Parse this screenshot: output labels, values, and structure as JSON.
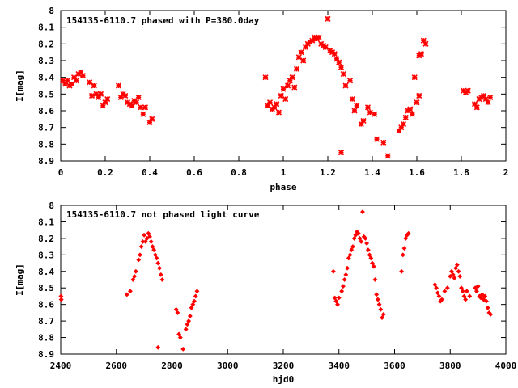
{
  "chart_data": [
    {
      "type": "scatter",
      "title": "154135-6110.7 phased with P=380.0day",
      "xlabel": "phase",
      "ylabel": "I[mag]",
      "xlim": [
        0,
        2
      ],
      "ylim": [
        8.9,
        8
      ],
      "y_inverted": true,
      "xticks": [
        0,
        0.2,
        0.4,
        0.6,
        0.8,
        1,
        1.2,
        1.4,
        1.6,
        1.8,
        2
      ],
      "xtick_labels": [
        "0",
        "0.2",
        "0.4",
        "0.6",
        "0.8",
        "1",
        "1.2",
        "1.4",
        "1.6",
        "1.8",
        "2"
      ],
      "yticks": [
        8,
        8.1,
        8.2,
        8.3,
        8.4,
        8.5,
        8.6,
        8.7,
        8.8,
        8.9
      ],
      "ytick_labels": [
        "8",
        "8.1",
        "8.2",
        "8.3",
        "8.4",
        "8.5",
        "8.6",
        "8.7",
        "8.8",
        "8.9"
      ],
      "marker": "cross",
      "color": "#ff0000",
      "grid": false,
      "points": [
        [
          0.01,
          8.42
        ],
        [
          0.02,
          8.44
        ],
        [
          0.03,
          8.42
        ],
        [
          0.04,
          8.45
        ],
        [
          0.05,
          8.44
        ],
        [
          0.06,
          8.4
        ],
        [
          0.07,
          8.42
        ],
        [
          0.08,
          8.38
        ],
        [
          0.09,
          8.37
        ],
        [
          0.1,
          8.39
        ],
        [
          0.13,
          8.43
        ],
        [
          0.14,
          8.51
        ],
        [
          0.15,
          8.45
        ],
        [
          0.16,
          8.5
        ],
        [
          0.17,
          8.52
        ],
        [
          0.18,
          8.5
        ],
        [
          0.19,
          8.57
        ],
        [
          0.2,
          8.55
        ],
        [
          0.21,
          8.53
        ],
        [
          0.26,
          8.45
        ],
        [
          0.27,
          8.52
        ],
        [
          0.28,
          8.5
        ],
        [
          0.29,
          8.51
        ],
        [
          0.3,
          8.55
        ],
        [
          0.31,
          8.56
        ],
        [
          0.32,
          8.57
        ],
        [
          0.33,
          8.54
        ],
        [
          0.34,
          8.55
        ],
        [
          0.35,
          8.52
        ],
        [
          0.36,
          8.58
        ],
        [
          0.37,
          8.62
        ],
        [
          0.38,
          8.58
        ],
        [
          0.4,
          8.67
        ],
        [
          0.41,
          8.65
        ],
        [
          0.92,
          8.4
        ],
        [
          0.93,
          8.57
        ],
        [
          0.94,
          8.55
        ],
        [
          0.95,
          8.59
        ],
        [
          0.96,
          8.58
        ],
        [
          0.97,
          8.56
        ],
        [
          0.98,
          8.61
        ],
        [
          0.99,
          8.51
        ],
        [
          1.0,
          8.47
        ],
        [
          1.01,
          8.53
        ],
        [
          1.02,
          8.45
        ],
        [
          1.03,
          8.42
        ],
        [
          1.04,
          8.4
        ],
        [
          1.05,
          8.46
        ],
        [
          1.06,
          8.35
        ],
        [
          1.07,
          8.28
        ],
        [
          1.08,
          8.25
        ],
        [
          1.09,
          8.3
        ],
        [
          1.1,
          8.22
        ],
        [
          1.11,
          8.2
        ],
        [
          1.12,
          8.19
        ],
        [
          1.13,
          8.18
        ],
        [
          1.14,
          8.16
        ],
        [
          1.15,
          8.17
        ],
        [
          1.16,
          8.16
        ],
        [
          1.17,
          8.2
        ],
        [
          1.18,
          8.21
        ],
        [
          1.19,
          8.22
        ],
        [
          1.2,
          8.05
        ],
        [
          1.21,
          8.24
        ],
        [
          1.22,
          8.25
        ],
        [
          1.23,
          8.26
        ],
        [
          1.24,
          8.29
        ],
        [
          1.25,
          8.31
        ],
        [
          1.26,
          8.34
        ],
        [
          1.27,
          8.38
        ],
        [
          1.28,
          8.45
        ],
        [
          1.3,
          8.42
        ],
        [
          1.31,
          8.53
        ],
        [
          1.32,
          8.6
        ],
        [
          1.33,
          8.57
        ],
        [
          1.35,
          8.68
        ],
        [
          1.36,
          8.66
        ],
        [
          1.38,
          8.58
        ],
        [
          1.39,
          8.61
        ],
        [
          1.41,
          8.62
        ],
        [
          1.42,
          8.77
        ],
        [
          1.45,
          8.79
        ],
        [
          1.26,
          8.85
        ],
        [
          1.47,
          8.87
        ],
        [
          1.52,
          8.72
        ],
        [
          1.53,
          8.7
        ],
        [
          1.54,
          8.68
        ],
        [
          1.55,
          8.64
        ],
        [
          1.56,
          8.6
        ],
        [
          1.57,
          8.59
        ],
        [
          1.58,
          8.62
        ],
        [
          1.59,
          8.4
        ],
        [
          1.6,
          8.55
        ],
        [
          1.61,
          8.51
        ],
        [
          1.61,
          8.27
        ],
        [
          1.62,
          8.26
        ],
        [
          1.63,
          8.18
        ],
        [
          1.64,
          8.2
        ],
        [
          1.81,
          8.48
        ],
        [
          1.82,
          8.49
        ],
        [
          1.83,
          8.48
        ],
        [
          1.86,
          8.56
        ],
        [
          1.87,
          8.58
        ],
        [
          1.88,
          8.53
        ],
        [
          1.89,
          8.52
        ],
        [
          1.9,
          8.51
        ],
        [
          1.91,
          8.53
        ],
        [
          1.92,
          8.55
        ],
        [
          1.93,
          8.52
        ]
      ]
    },
    {
      "type": "scatter",
      "title": "154135-6110.7 not phased light curve",
      "xlabel": "hjd0",
      "ylabel": "I[mag]",
      "xlim": [
        2400,
        4000
      ],
      "ylim": [
        8.9,
        8
      ],
      "y_inverted": true,
      "xticks": [
        2400,
        2600,
        2800,
        3000,
        3200,
        3400,
        3600,
        3800,
        4000
      ],
      "xtick_labels": [
        "2400",
        "2600",
        "2800",
        "3000",
        "3200",
        "3400",
        "3600",
        "3800",
        "4000"
      ],
      "yticks": [
        8,
        8.1,
        8.2,
        8.3,
        8.4,
        8.5,
        8.6,
        8.7,
        8.8,
        8.9
      ],
      "ytick_labels": [
        "8",
        "8.1",
        "8.2",
        "8.3",
        "8.4",
        "8.5",
        "8.6",
        "8.7",
        "8.8",
        "8.9"
      ],
      "marker": "diamond",
      "color": "#ff0000",
      "grid": false,
      "points": [
        [
          2401,
          8.55
        ],
        [
          2402,
          8.57
        ],
        [
          2638,
          8.54
        ],
        [
          2650,
          8.52
        ],
        [
          2660,
          8.45
        ],
        [
          2665,
          8.43
        ],
        [
          2670,
          8.4
        ],
        [
          2680,
          8.33
        ],
        [
          2685,
          8.3
        ],
        [
          2690,
          8.25
        ],
        [
          2695,
          8.22
        ],
        [
          2700,
          8.18
        ],
        [
          2705,
          8.22
        ],
        [
          2710,
          8.2
        ],
        [
          2715,
          8.17
        ],
        [
          2720,
          8.19
        ],
        [
          2725,
          8.22
        ],
        [
          2730,
          8.25
        ],
        [
          2735,
          8.27
        ],
        [
          2740,
          8.3
        ],
        [
          2745,
          8.32
        ],
        [
          2750,
          8.35
        ],
        [
          2755,
          8.38
        ],
        [
          2760,
          8.42
        ],
        [
          2765,
          8.45
        ],
        [
          2750,
          8.86
        ],
        [
          2815,
          8.63
        ],
        [
          2820,
          8.65
        ],
        [
          2825,
          8.78
        ],
        [
          2830,
          8.8
        ],
        [
          2840,
          8.87
        ],
        [
          2850,
          8.75
        ],
        [
          2855,
          8.72
        ],
        [
          2860,
          8.7
        ],
        [
          2865,
          8.67
        ],
        [
          2870,
          8.62
        ],
        [
          2875,
          8.6
        ],
        [
          2880,
          8.58
        ],
        [
          2885,
          8.55
        ],
        [
          2890,
          8.52
        ],
        [
          3380,
          8.4
        ],
        [
          3385,
          8.56
        ],
        [
          3390,
          8.58
        ],
        [
          3395,
          8.6
        ],
        [
          3400,
          8.56
        ],
        [
          3410,
          8.52
        ],
        [
          3415,
          8.49
        ],
        [
          3420,
          8.45
        ],
        [
          3425,
          8.42
        ],
        [
          3430,
          8.38
        ],
        [
          3435,
          8.32
        ],
        [
          3440,
          8.3
        ],
        [
          3445,
          8.27
        ],
        [
          3450,
          8.25
        ],
        [
          3455,
          8.2
        ],
        [
          3460,
          8.18
        ],
        [
          3465,
          8.16
        ],
        [
          3470,
          8.17
        ],
        [
          3475,
          8.2
        ],
        [
          3480,
          8.22
        ],
        [
          3485,
          8.04
        ],
        [
          3490,
          8.19
        ],
        [
          3495,
          8.2
        ],
        [
          3500,
          8.23
        ],
        [
          3505,
          8.27
        ],
        [
          3510,
          8.3
        ],
        [
          3515,
          8.32
        ],
        [
          3520,
          8.35
        ],
        [
          3525,
          8.37
        ],
        [
          3530,
          8.45
        ],
        [
          3535,
          8.54
        ],
        [
          3540,
          8.57
        ],
        [
          3545,
          8.6
        ],
        [
          3550,
          8.63
        ],
        [
          3555,
          8.68
        ],
        [
          3560,
          8.66
        ],
        [
          3625,
          8.4
        ],
        [
          3630,
          8.3
        ],
        [
          3635,
          8.26
        ],
        [
          3640,
          8.2
        ],
        [
          3645,
          8.18
        ],
        [
          3650,
          8.17
        ],
        [
          3745,
          8.48
        ],
        [
          3750,
          8.5
        ],
        [
          3755,
          8.53
        ],
        [
          3760,
          8.55
        ],
        [
          3765,
          8.58
        ],
        [
          3770,
          8.57
        ],
        [
          3780,
          8.52
        ],
        [
          3790,
          8.5
        ],
        [
          3800,
          8.43
        ],
        [
          3805,
          8.4
        ],
        [
          3810,
          8.42
        ],
        [
          3815,
          8.44
        ],
        [
          3820,
          8.38
        ],
        [
          3825,
          8.36
        ],
        [
          3830,
          8.4
        ],
        [
          3835,
          8.43
        ],
        [
          3840,
          8.5
        ],
        [
          3845,
          8.52
        ],
        [
          3850,
          8.55
        ],
        [
          3855,
          8.57
        ],
        [
          3860,
          8.52
        ],
        [
          3870,
          8.55
        ],
        [
          3890,
          8.5
        ],
        [
          3895,
          8.52
        ],
        [
          3900,
          8.49
        ],
        [
          3905,
          8.55
        ],
        [
          3910,
          8.56
        ],
        [
          3915,
          8.54
        ],
        [
          3920,
          8.57
        ],
        [
          3925,
          8.55
        ],
        [
          3930,
          8.58
        ],
        [
          3935,
          8.62
        ],
        [
          3940,
          8.65
        ],
        [
          3945,
          8.66
        ]
      ]
    }
  ]
}
